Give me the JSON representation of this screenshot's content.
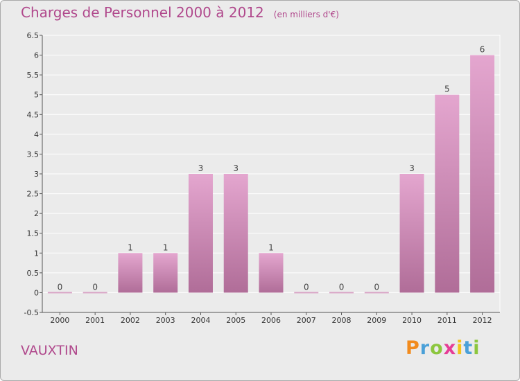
{
  "title": "Charges de Personnel 2000 à 2012",
  "subtitle": "(en milliers d'€)",
  "place": "VAUXTIN",
  "logo": {
    "letters": [
      "P",
      "r",
      "o",
      "x",
      "i",
      "t",
      "i"
    ]
  },
  "colors": {
    "title": "#b0488c",
    "bar_top": "#e4a6cf",
    "bar_bottom": "#b06d98",
    "background": "#ebebeb",
    "grid": "#ffffff"
  },
  "chart_data": {
    "type": "bar",
    "title": "Charges de Personnel 2000 à 2012",
    "subtitle": "(en milliers d'€)",
    "categories": [
      "2000",
      "2001",
      "2002",
      "2003",
      "2004",
      "2005",
      "2006",
      "2007",
      "2008",
      "2009",
      "2010",
      "2011",
      "2012"
    ],
    "values": [
      0,
      0,
      1,
      1,
      3,
      3,
      1,
      0,
      0,
      0,
      3,
      5,
      6
    ],
    "value_labels": [
      "0",
      "0",
      "1",
      "1",
      "3",
      "3",
      "1",
      "0",
      "0",
      "0",
      "3",
      "5",
      "6"
    ],
    "ylim": [
      -0.5,
      6.5
    ],
    "yticks": [
      -0.5,
      0,
      0.5,
      1,
      1.5,
      2,
      2.5,
      3,
      3.5,
      4,
      4.5,
      5,
      5.5,
      6,
      6.5
    ],
    "ytick_labels": [
      "-0.5",
      "0",
      "0.5",
      "1",
      "1.5",
      "2",
      "2.5",
      "3",
      "3.5",
      "4",
      "4.5",
      "5",
      "5.5",
      "6",
      "6.5"
    ],
    "grid": true,
    "legend": "none"
  }
}
